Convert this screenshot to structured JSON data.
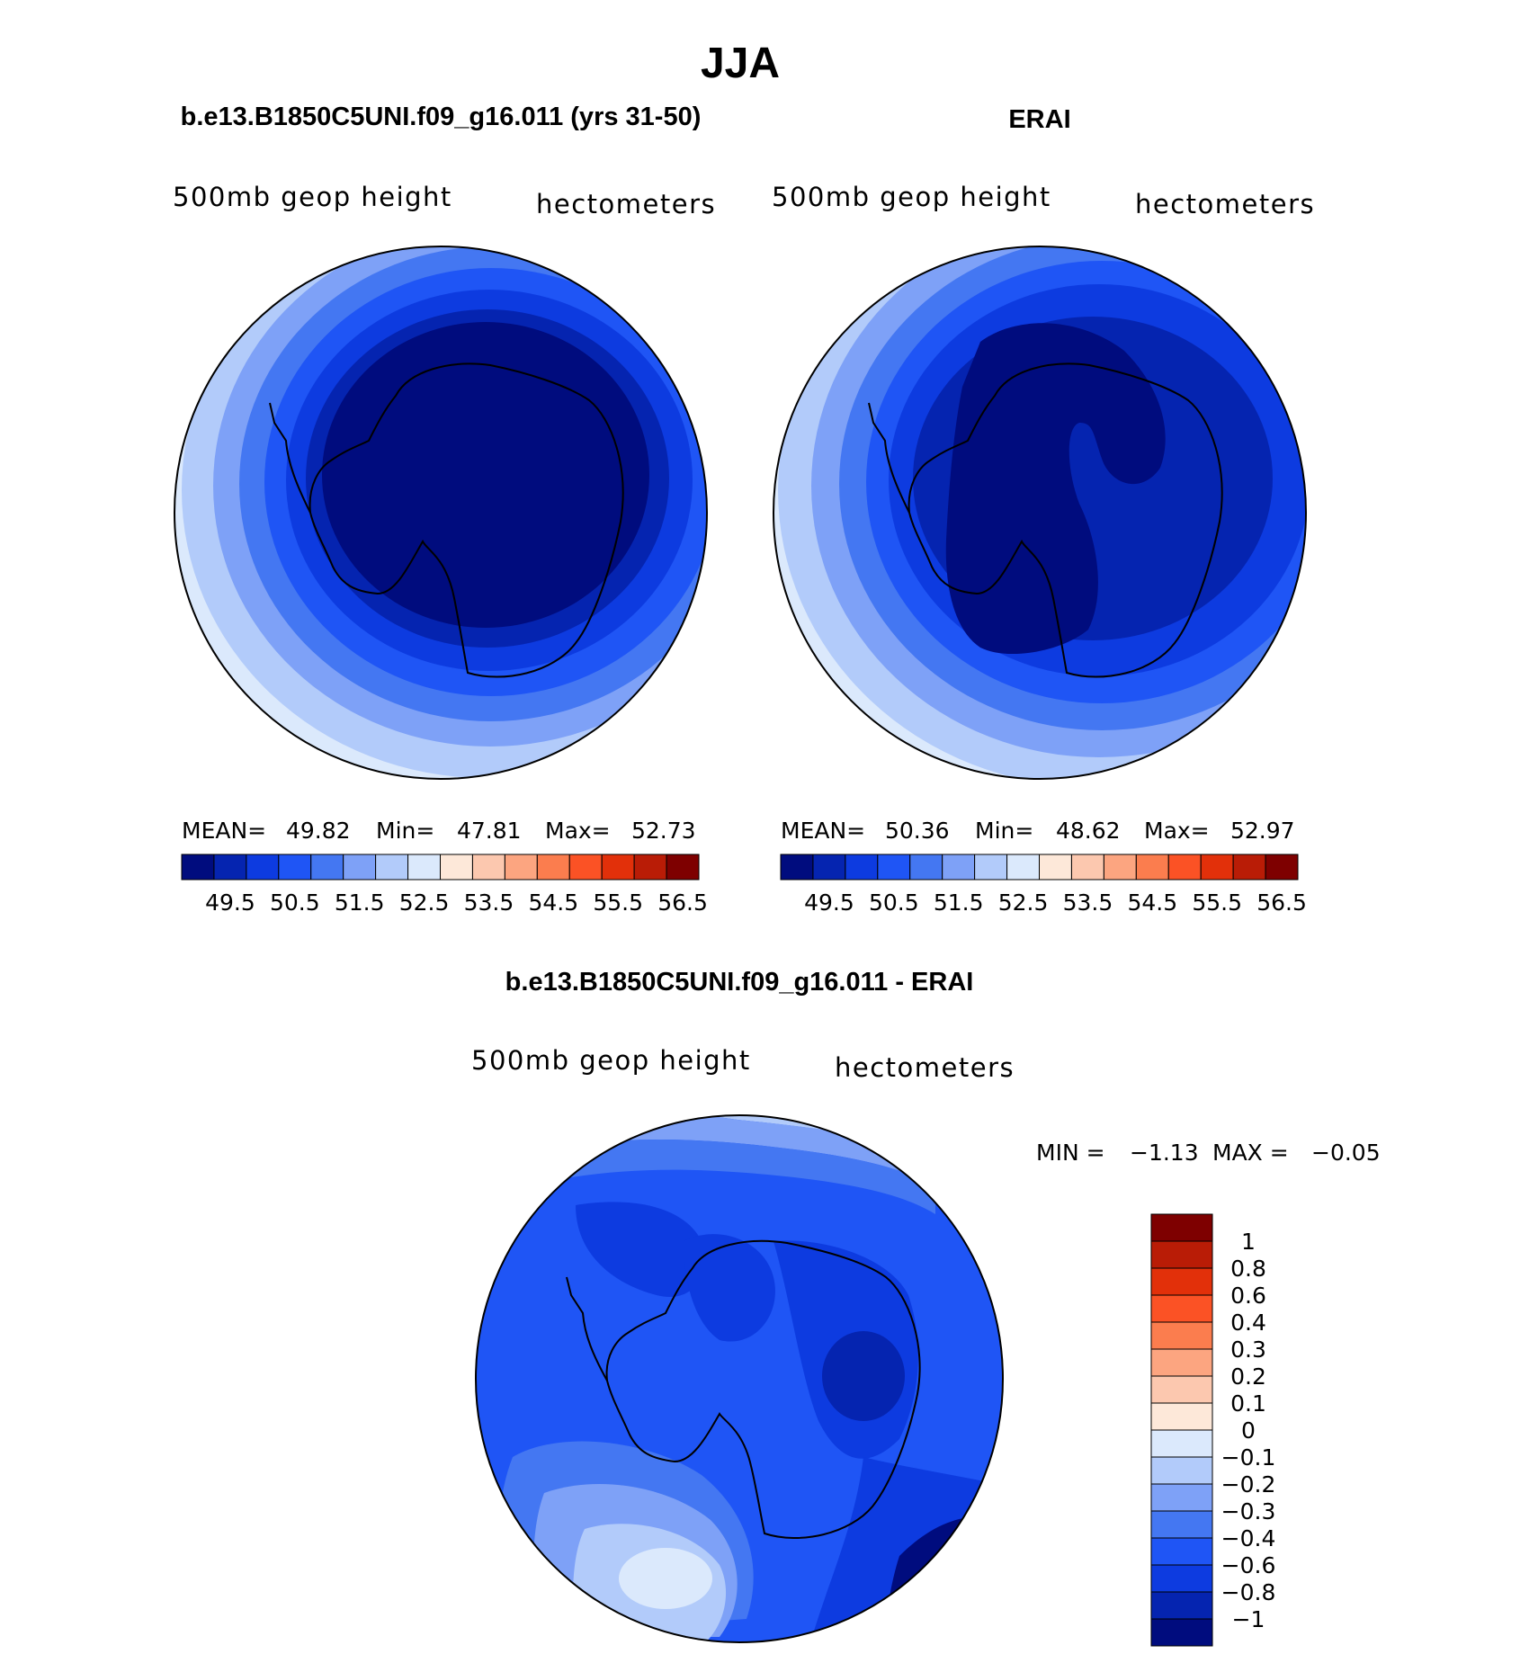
{
  "title": "JJA",
  "colors": {
    "blues": [
      "#000c7e",
      "#0524b0",
      "#0d3be0",
      "#1f55f5",
      "#4477f2",
      "#7ea1f7",
      "#b2cbfa",
      "#dbe9fc"
    ],
    "reds": [
      "#fde8d9",
      "#fcc8af",
      "#fca580",
      "#fb7d4e",
      "#fb5225",
      "#e2300a",
      "#b91c06",
      "#7e0000"
    ]
  },
  "chart_data": [
    {
      "type": "contour_map",
      "panel": "model",
      "title": "b.e13.B1850C5UNI.f09_g16.011 (yrs 31-50)",
      "left_label": "500mb geop height",
      "right_label": "hectometers",
      "stats": {
        "mean_label": "MEAN=",
        "mean": "49.82",
        "min_label": "Min=",
        "min": "47.81",
        "max_label": "Max=",
        "max": "52.73"
      },
      "contour_levels": [
        49.5,
        50,
        50.5,
        51,
        51.5,
        52,
        52.5,
        53,
        53.5,
        54,
        54.5,
        55,
        55.5,
        56,
        56.5
      ],
      "colorbar_labels": [
        "49.5",
        "50.5",
        "51.5",
        "52.5",
        "53.5",
        "54.5",
        "55.5",
        "56.5"
      ]
    },
    {
      "type": "contour_map",
      "panel": "obs",
      "title": "ERAI",
      "left_label": "500mb geop height",
      "right_label": "hectometers",
      "stats": {
        "mean_label": "MEAN=",
        "mean": "50.36",
        "min_label": "Min=",
        "min": "48.62",
        "max_label": "Max=",
        "max": "52.97"
      },
      "contour_levels": [
        49.5,
        50,
        50.5,
        51,
        51.5,
        52,
        52.5,
        53,
        53.5,
        54,
        54.5,
        55,
        55.5,
        56,
        56.5
      ],
      "colorbar_labels": [
        "49.5",
        "50.5",
        "51.5",
        "52.5",
        "53.5",
        "54.5",
        "55.5",
        "56.5"
      ]
    },
    {
      "type": "contour_map",
      "panel": "difference",
      "title": "b.e13.B1850C5UNI.f09_g16.011 - ERAI",
      "left_label": "500mb geop height",
      "right_label": "hectometers",
      "stats": {
        "min_label": "MIN =",
        "min": "−1.13",
        "max_label": "MAX =",
        "max": "−0.05"
      },
      "contour_levels": [
        -1,
        -0.8,
        -0.6,
        -0.4,
        -0.3,
        -0.2,
        -0.1,
        0,
        0.1,
        0.2,
        0.3,
        0.4,
        0.6,
        0.8,
        1
      ],
      "colorbar_labels": [
        "1",
        "0.8",
        "0.6",
        "0.4",
        "0.3",
        "0.2",
        "0.1",
        "0",
        "−0.1",
        "−0.2",
        "−0.3",
        "−0.4",
        "−0.6",
        "−0.8",
        "−1"
      ]
    }
  ]
}
